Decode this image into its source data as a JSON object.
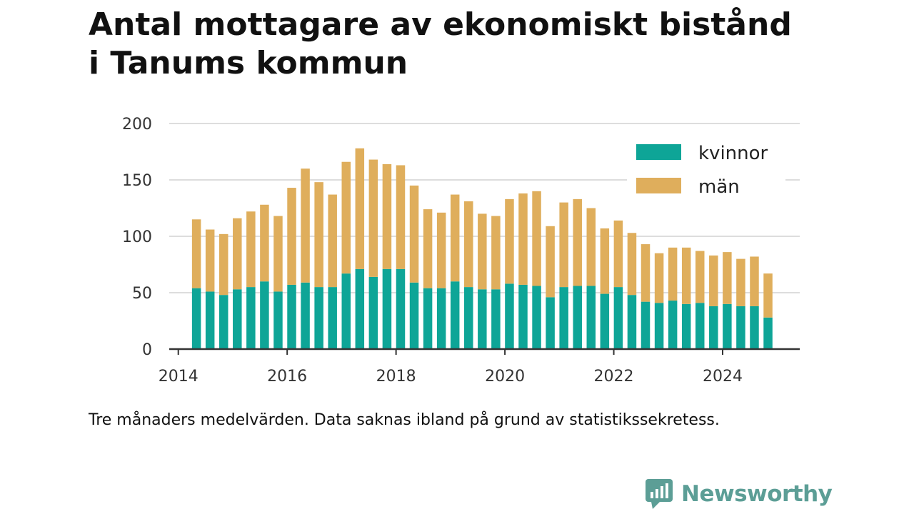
{
  "title_lines": [
    "Antal mottagare av ekonomiskt bistånd",
    "i Tanums kommun"
  ],
  "caption": "Tre månaders medelvärden. Data saknas ibland på grund av statistikssekretess.",
  "brand": {
    "name": "Newsworthy",
    "icon": "newsworthy-logo-icon",
    "color": "#5c9e96"
  },
  "colors": {
    "kvinnor": "#0ea597",
    "man": "#dfae5c",
    "grid": "#dddddd",
    "axis": "#333333"
  },
  "chart_data": {
    "type": "bar",
    "stacked": true,
    "title": "Antal mottagare av ekonomiskt bistånd i Tanums kommun",
    "xlabel": "",
    "ylabel": "",
    "ylim": [
      0,
      200
    ],
    "yticks": [
      0,
      50,
      100,
      150,
      200
    ],
    "xticks": [
      "2014",
      "2016",
      "2018",
      "2020",
      "2022",
      "2024"
    ],
    "xlim": [
      "2013-11",
      "2025-06"
    ],
    "grid": true,
    "legend": "top-right",
    "dates": [
      "2014-05",
      "2014-08",
      "2014-11",
      "2015-02",
      "2015-05",
      "2015-08",
      "2015-11",
      "2016-02",
      "2016-05",
      "2016-08",
      "2016-11",
      "2017-02",
      "2017-05",
      "2017-08",
      "2017-11",
      "2018-02",
      "2018-05",
      "2018-08",
      "2018-11",
      "2019-02",
      "2019-05",
      "2019-08",
      "2019-11",
      "2020-02",
      "2020-05",
      "2020-08",
      "2020-11",
      "2021-02",
      "2021-05",
      "2021-08",
      "2021-11",
      "2022-02",
      "2022-05",
      "2022-08",
      "2022-11",
      "2023-02",
      "2023-05",
      "2023-08",
      "2023-11",
      "2024-02",
      "2024-05",
      "2024-08",
      "2024-11"
    ],
    "series": [
      {
        "name": "kvinnor",
        "values": [
          54,
          51,
          48,
          53,
          55,
          60,
          51,
          57,
          59,
          55,
          55,
          67,
          71,
          64,
          71,
          71,
          59,
          54,
          54,
          60,
          55,
          53,
          53,
          58,
          57,
          56,
          46,
          55,
          56,
          56,
          49,
          55,
          48,
          42,
          41,
          43,
          40,
          41,
          38,
          40,
          38,
          38,
          28
        ]
      },
      {
        "name": "män",
        "values": [
          61,
          55,
          54,
          63,
          67,
          68,
          67,
          86,
          101,
          93,
          82,
          99,
          107,
          104,
          93,
          92,
          86,
          70,
          67,
          77,
          76,
          67,
          65,
          75,
          81,
          84,
          63,
          75,
          77,
          69,
          58,
          59,
          55,
          51,
          44,
          47,
          50,
          46,
          45,
          46,
          42,
          44,
          39
        ]
      }
    ]
  }
}
